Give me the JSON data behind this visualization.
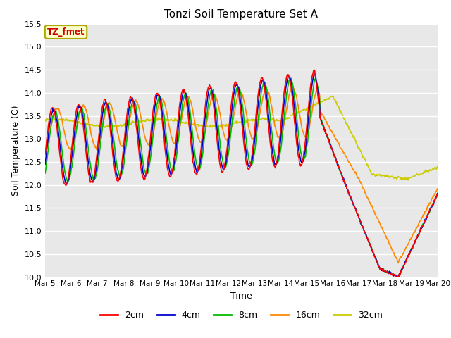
{
  "title": "Tonzi Soil Temperature Set A",
  "xlabel": "Time",
  "ylabel": "Soil Temperature (C)",
  "ylim": [
    10.0,
    15.5
  ],
  "yticks": [
    10.0,
    10.5,
    11.0,
    11.5,
    12.0,
    12.5,
    13.0,
    13.5,
    14.0,
    14.5,
    15.0,
    15.5
  ],
  "date_labels": [
    "Mar 5",
    "Mar 6",
    "Mar 7",
    "Mar 8",
    "Mar 9",
    "Mar 10",
    "Mar 11",
    "Mar 12",
    "Mar 13",
    "Mar 14",
    "Mar 15",
    "Mar 16",
    "Mar 17",
    "Mar 18",
    "Mar 19",
    "Mar 20"
  ],
  "series": {
    "2cm": {
      "color": "#ff0000",
      "lw": 1.2
    },
    "4cm": {
      "color": "#0000cc",
      "lw": 1.2
    },
    "8cm": {
      "color": "#00bb00",
      "lw": 1.2
    },
    "16cm": {
      "color": "#ff8800",
      "lw": 1.2
    },
    "32cm": {
      "color": "#cccc00",
      "lw": 1.2
    }
  },
  "annotation_text": "TZ_fmet",
  "annotation_color": "#cc0000",
  "annotation_bg": "#ffffcc",
  "plot_bg": "#e8e8e8"
}
